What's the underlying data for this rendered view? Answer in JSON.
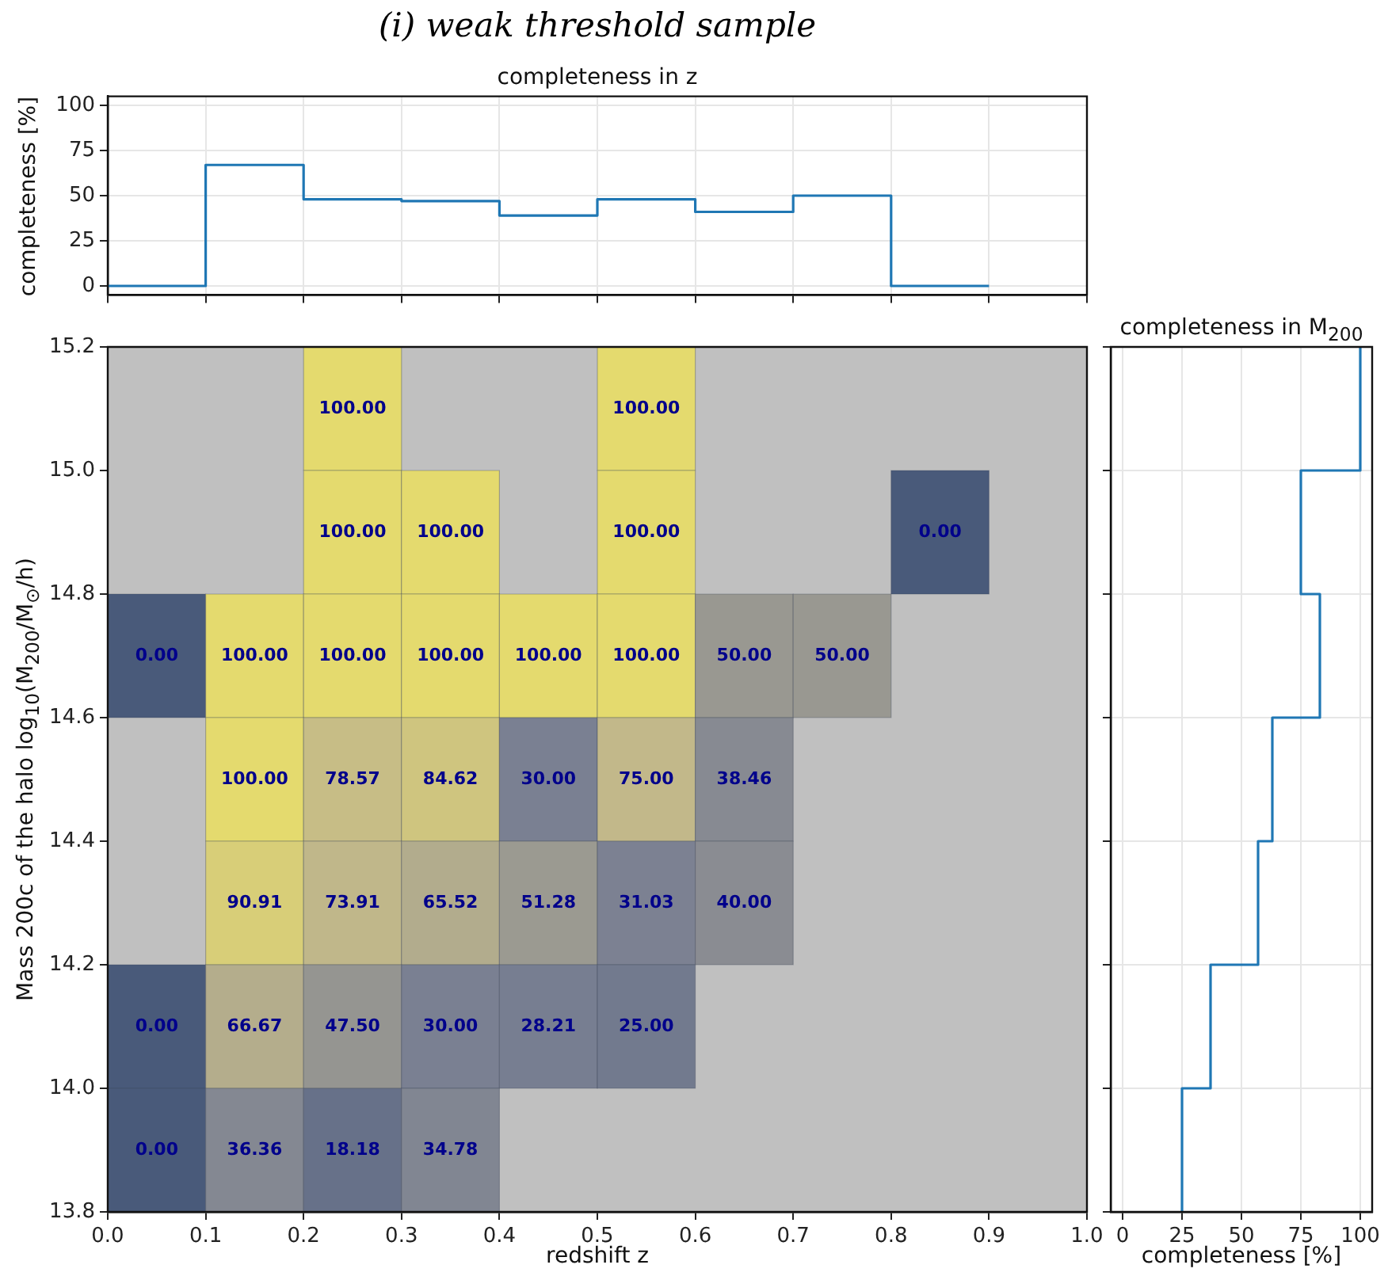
{
  "chart_data": [
    {
      "type": "histogram",
      "title": "(i) weak threshold sample",
      "subtitle": "completeness in z",
      "ylabel": "completeness [%]",
      "bins": [
        0,
        0.1,
        0.2,
        0.3,
        0.4,
        0.5,
        0.6,
        0.7,
        0.8,
        0.9
      ],
      "values": [
        0,
        67,
        48,
        47,
        39,
        48,
        41,
        50,
        0
      ],
      "color": "#1f77b4",
      "xlim": [
        0,
        1
      ],
      "xticks": [
        0,
        0.1,
        0.2,
        0.3,
        0.4,
        0.5,
        0.6,
        0.7,
        0.8,
        0.9,
        1.0
      ],
      "ylim": [
        -5,
        105
      ],
      "yticks": [
        0,
        25,
        50,
        75,
        100
      ],
      "tick_labels": "y",
      "grid": true
    },
    {
      "type": "heatmap",
      "xlabel": "redshift z",
      "ylabel": "Mass 200c of the halo log$_{10}$(M$_{200}$/M$_{⊙}$/h)",
      "xlim": [
        0,
        1
      ],
      "xticks": [
        {
          "value": 0,
          "label": "0.0"
        },
        0.1,
        0.2,
        0.3,
        0.4,
        0.5,
        0.6,
        0.7,
        0.8,
        0.9,
        {
          "value": 1,
          "label": "1.0"
        }
      ],
      "ylim": [
        13.8,
        15.2
      ],
      "yticks": [
        13.8,
        {
          "value": 14,
          "label": "14.0"
        },
        14.2,
        14.4,
        14.6,
        14.8,
        {
          "value": 15,
          "label": "15.0"
        },
        15.2
      ],
      "cells": [
        [
          null,
          null,
          100,
          null,
          null,
          100,
          null,
          null,
          null,
          null
        ],
        [
          null,
          null,
          100,
          100,
          null,
          100,
          null,
          null,
          0,
          null
        ],
        [
          0,
          100,
          100,
          100,
          100,
          100,
          50,
          50,
          null,
          null
        ],
        [
          null,
          100,
          78.57,
          84.62,
          30,
          75,
          38.46,
          null,
          null,
          null
        ],
        [
          null,
          90.91,
          73.91,
          65.52,
          51.28,
          31.03,
          40,
          null,
          null,
          null
        ],
        [
          0,
          66.67,
          47.5,
          30,
          28.21,
          25,
          null,
          null,
          null,
          null
        ],
        [
          0,
          36.36,
          18.18,
          34.78,
          null,
          null,
          null,
          null,
          null,
          null
        ]
      ],
      "cell_labels": [
        [
          null,
          null,
          "100.00",
          null,
          null,
          "100.00",
          null,
          null,
          null,
          null
        ],
        [
          null,
          null,
          "100.00",
          "100.00",
          null,
          "100.00",
          null,
          null,
          "0.00",
          null
        ],
        [
          "0.00",
          "100.00",
          "100.00",
          "100.00",
          "100.00",
          "100.00",
          "50.00",
          "50.00",
          null,
          null
        ],
        [
          null,
          "100.00",
          "78.57",
          "84.62",
          "30.00",
          "75.00",
          "38.46",
          null,
          null,
          null
        ],
        [
          null,
          "90.91",
          "73.91",
          "65.52",
          "51.28",
          "31.03",
          "40.00",
          null,
          null,
          null
        ],
        [
          "0.00",
          "66.67",
          "47.50",
          "30.00",
          "28.21",
          "25.00",
          null,
          null,
          null,
          null
        ],
        [
          "0.00",
          "36.36",
          "18.18",
          "34.78",
          null,
          null,
          null,
          null,
          null,
          null
        ]
      ],
      "grid": false
    },
    {
      "type": "histogram",
      "orientation": "horizontal",
      "title": "completeness in M$_{200}$",
      "xlabel": "completeness [%]",
      "bins": [
        13.8,
        14.0,
        14.2,
        14.4,
        14.6,
        14.8,
        15.0,
        15.2
      ],
      "values": [
        25,
        37,
        57,
        63,
        83,
        75,
        100
      ],
      "color": "#1f77b4",
      "xlim": [
        -5,
        105
      ],
      "xticks": [
        0,
        25,
        50,
        75,
        100
      ],
      "ylim": [
        13.8,
        15.2
      ],
      "yticks": [
        13.8,
        14.0,
        14.2,
        14.4,
        14.6,
        14.8,
        15.0,
        15.2
      ],
      "tick_labels": "x",
      "grid": true
    }
  ]
}
